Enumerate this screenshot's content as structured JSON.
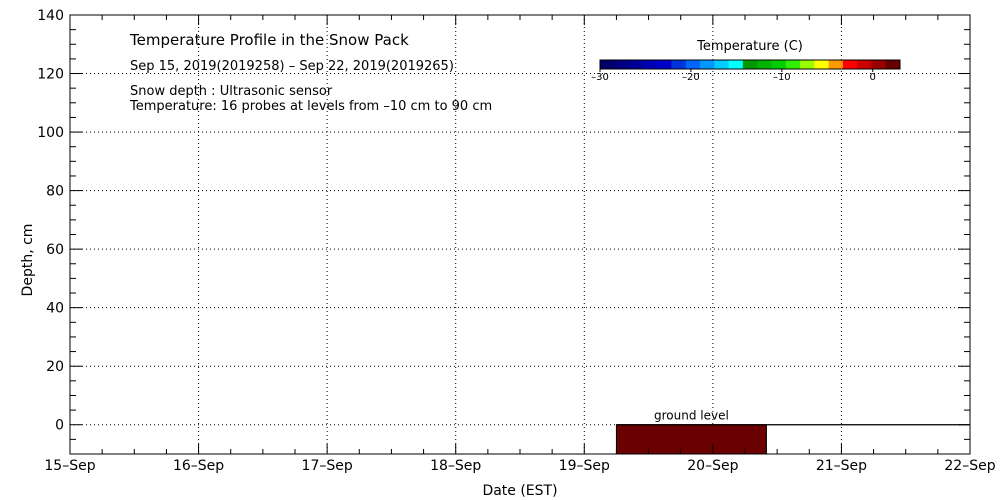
{
  "chart_data": {
    "type": "heatmap",
    "title": "Temperature Profile in the Snow Pack",
    "date_range": "Sep 15, 2019(2019258) – Sep 22, 2019(2019265)",
    "notes": [
      "Snow depth : Ultrasonic sensor",
      "Temperature: 16 probes at levels from –10 cm to 90 cm"
    ],
    "xlabel": "Date (EST)",
    "ylabel": "Depth, cm",
    "x_ticks": [
      "15–Sep",
      "16–Sep",
      "17–Sep",
      "18–Sep",
      "19–Sep",
      "20–Sep",
      "21–Sep",
      "22–Sep"
    ],
    "y_ticks": [
      0,
      20,
      40,
      60,
      80,
      100,
      120,
      140
    ],
    "y_tick_labels": [
      "0",
      "20",
      "40",
      "60",
      "80",
      "100",
      "120",
      "140"
    ],
    "xlim": [
      "15-Sep",
      "22-Sep"
    ],
    "ylim": [
      -10,
      140
    ],
    "grid": true,
    "ground_level": 0,
    "ground_label": "ground level",
    "ground_line_start": "19-Sep 06:00",
    "temperature_block": {
      "x_start": "19-Sep 06:00",
      "x_end": "20-Sep 10:00",
      "y_from": -10,
      "y_to": 0,
      "color": "#6b0000"
    },
    "colorbar": {
      "title": "Temperature (C)",
      "range": [
        -30,
        3
      ],
      "tick_values": [
        -30,
        -20,
        -10,
        0
      ],
      "tick_labels": [
        "–30",
        "–20",
        "–10",
        "0"
      ],
      "colors": [
        "#000066",
        "#000080",
        "#000099",
        "#0000b3",
        "#0000cc",
        "#0033dd",
        "#0066ff",
        "#0099ff",
        "#00ccff",
        "#00ffff",
        "#009900",
        "#00b300",
        "#00cc00",
        "#33ee00",
        "#99ff00",
        "#ffff00",
        "#ff9900",
        "#ff0000",
        "#cc0000",
        "#990000",
        "#660000"
      ]
    }
  }
}
